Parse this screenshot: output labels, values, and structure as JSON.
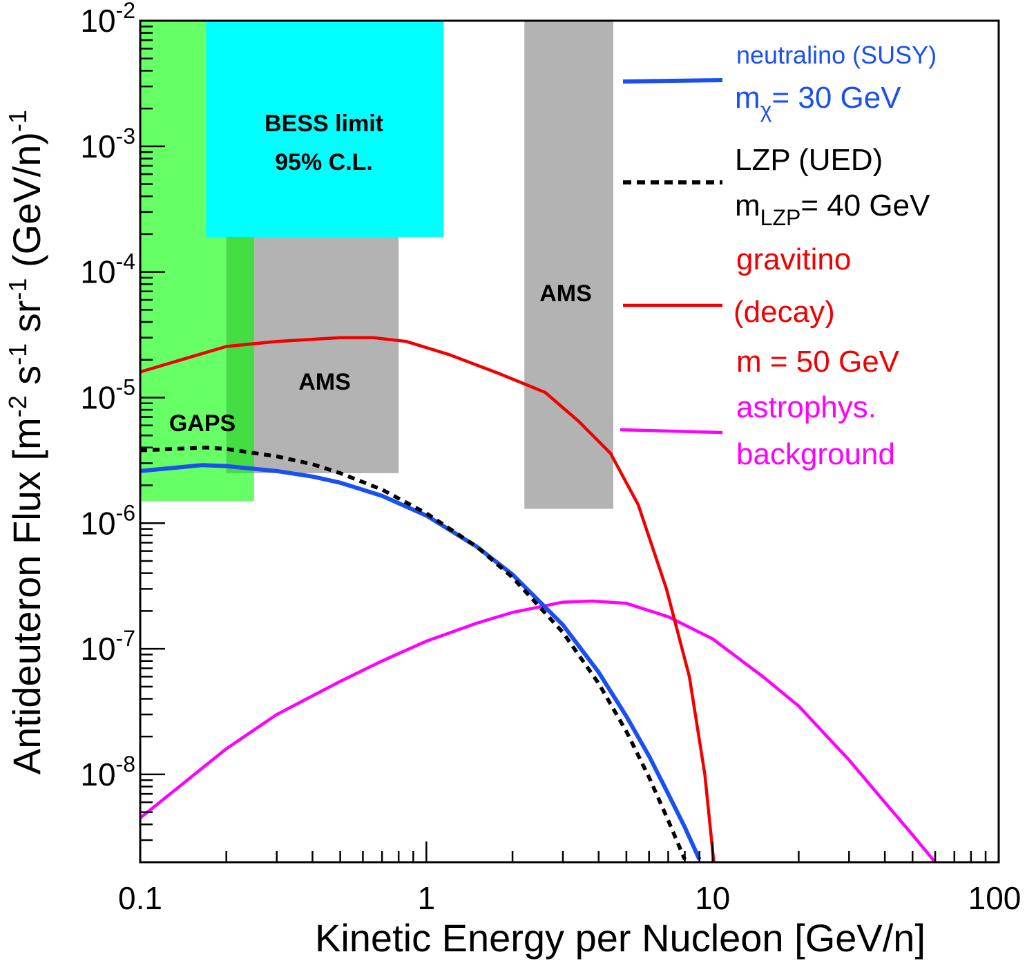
{
  "chart_data": {
    "type": "line",
    "xlabel": "Kinetic Energy per Nucleon [GeV/n]",
    "ylabel_parts": {
      "prefix": "Antideuteron Flux [m",
      "exp1": "-2",
      "mid1": " s",
      "exp2": "-1",
      "mid2": " sr",
      "exp3": "-1",
      "mid3": " (GeV/n)",
      "exp4": "-1"
    },
    "x_scale": "log",
    "y_scale": "log",
    "xlim": [
      0.1,
      100
    ],
    "ylim": [
      2e-09,
      0.01
    ],
    "x_ticks": [
      {
        "value": 0.1,
        "label": "0.1"
      },
      {
        "value": 1,
        "label": "1"
      },
      {
        "value": 10,
        "label": "10"
      },
      {
        "value": 100,
        "label": "100"
      }
    ],
    "y_ticks": [
      {
        "value": 1e-08,
        "base": "10",
        "exp": "-8"
      },
      {
        "value": 1e-07,
        "base": "10",
        "exp": "-7"
      },
      {
        "value": 1e-06,
        "base": "10",
        "exp": "-6"
      },
      {
        "value": 1e-05,
        "base": "10",
        "exp": "-5"
      },
      {
        "value": 0.0001,
        "base": "10",
        "exp": "-4"
      },
      {
        "value": 0.001,
        "base": "10",
        "exp": "-3"
      },
      {
        "value": 0.01,
        "base": "10",
        "exp": "-2"
      }
    ],
    "grid": false,
    "legend_position": "right",
    "sensitivity_regions": [
      {
        "label": "GAPS",
        "x": [
          0.1,
          0.25
        ],
        "y": [
          1.5e-06,
          0.01
        ],
        "color": "#66ff66"
      },
      {
        "label": "AMS",
        "x": [
          0.2,
          0.8
        ],
        "y": [
          2.5e-06,
          0.00019
        ],
        "color": "#b3b3b3"
      },
      {
        "label": "BESS limit",
        "label2": "95% C.L.",
        "x": [
          0.17,
          1.15
        ],
        "y": [
          0.00019,
          0.01
        ],
        "color": "#00ffff"
      },
      {
        "label": "AMS",
        "x": [
          2.2,
          4.5
        ],
        "y": [
          1.3e-06,
          0.01
        ],
        "color": "#b3b3b3"
      }
    ],
    "overlap_color": "#44dd44",
    "series": [
      {
        "name": "neutralino (SUSY)",
        "name2_prefix": "m",
        "name2_sub": "χ",
        "name2_suffix": "= 30 GeV",
        "color": "#1a4ff0",
        "dash": "none",
        "x": [
          0.1,
          0.165,
          0.2,
          0.3,
          0.4,
          0.5,
          0.7,
          1.0,
          1.5,
          2.0,
          3.0,
          4.0,
          5.0,
          6.0,
          7.0,
          8.0,
          9.0
        ],
        "y": [
          2.6e-06,
          2.9e-06,
          2.85e-06,
          2.6e-06,
          2.35e-06,
          2.1e-06,
          1.65e-06,
          1.15e-06,
          6.5e-07,
          3.9e-07,
          1.55e-07,
          6.5e-08,
          2.9e-08,
          1.4e-08,
          7e-09,
          3.8e-09,
          2.1e-09
        ]
      },
      {
        "name": "LZP (UED)",
        "name2_prefix": "m",
        "name2_sub": "LZP",
        "name2_suffix": "= 40 GeV",
        "color": "#000000",
        "dash": "10,8",
        "x": [
          0.1,
          0.17,
          0.2,
          0.3,
          0.4,
          0.5,
          0.7,
          1.0,
          1.5,
          2.0,
          3.0,
          4.0,
          5.0,
          6.0,
          7.0,
          8.0
        ],
        "y": [
          3.8e-06,
          4e-06,
          3.9e-06,
          3.4e-06,
          2.95e-06,
          2.5e-06,
          1.85e-06,
          1.2e-06,
          6.5e-07,
          3.7e-07,
          1.35e-07,
          5.3e-08,
          2.2e-08,
          9.5e-09,
          4.3e-09,
          2.1e-09
        ]
      },
      {
        "name": "gravitino",
        "name2": "(decay)",
        "name3": "m = 50 GeV",
        "color": "#f00000",
        "dash": "none",
        "x": [
          0.1,
          0.2,
          0.3,
          0.5,
          0.65,
          0.85,
          1.2,
          1.8,
          2.6,
          3.4,
          4.4,
          5.5,
          6.9,
          8.3,
          9.4,
          10.1
        ],
        "y": [
          1.6e-05,
          2.55e-05,
          2.8e-05,
          3e-05,
          3e-05,
          2.8e-05,
          2.2e-05,
          1.55e-05,
          1.1e-05,
          6.5e-06,
          3.6e-06,
          1.4e-06,
          3e-07,
          6e-08,
          1e-08,
          2e-09
        ]
      },
      {
        "name": "astrophys.",
        "name2": "background",
        "color": "#ff00ff",
        "dash": "none",
        "x": [
          0.1,
          0.2,
          0.3,
          0.5,
          0.7,
          1.0,
          1.5,
          2.0,
          3.0,
          3.8,
          5.0,
          7.0,
          10.0,
          15.0,
          20.0,
          30.0,
          40.0,
          50.0,
          60.0
        ],
        "y": [
          4.5e-09,
          1.6e-08,
          3e-08,
          5.5e-08,
          8e-08,
          1.15e-07,
          1.6e-07,
          1.95e-07,
          2.35e-07,
          2.4e-07,
          2.3e-07,
          1.8e-07,
          1.2e-07,
          6e-08,
          3.5e-08,
          1.3e-08,
          6e-09,
          3.3e-09,
          2e-09
        ]
      }
    ]
  }
}
